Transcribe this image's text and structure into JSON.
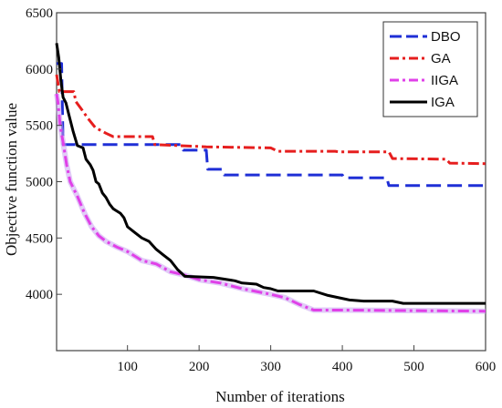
{
  "chart_data": {
    "type": "line",
    "title": "",
    "xlabel": "Number of iterations",
    "ylabel": "Objective function value",
    "xlim": [
      1,
      600
    ],
    "ylim": [
      3500,
      6500
    ],
    "xticks": [
      100,
      200,
      300,
      400,
      500,
      600
    ],
    "yticks": [
      4000,
      4500,
      5000,
      5500,
      6000,
      6500
    ],
    "grid": false,
    "legend_position": "top-right",
    "series": [
      {
        "name": "DBO",
        "color": "#1f2fd6",
        "dash": "long-dash",
        "points": [
          [
            1,
            6050
          ],
          [
            8,
            6050
          ],
          [
            10,
            5330
          ],
          [
            175,
            5330
          ],
          [
            178,
            5280
          ],
          [
            210,
            5280
          ],
          [
            212,
            5110
          ],
          [
            232,
            5110
          ],
          [
            235,
            5060
          ],
          [
            400,
            5060
          ],
          [
            402,
            5035
          ],
          [
            462,
            5035
          ],
          [
            465,
            4965
          ],
          [
            600,
            4965
          ]
        ]
      },
      {
        "name": "GA",
        "color": "#e61e1e",
        "dash": "dash-dot",
        "points": [
          [
            1,
            5950
          ],
          [
            5,
            5800
          ],
          [
            25,
            5800
          ],
          [
            28,
            5710
          ],
          [
            35,
            5650
          ],
          [
            45,
            5560
          ],
          [
            55,
            5480
          ],
          [
            70,
            5430
          ],
          [
            80,
            5400
          ],
          [
            135,
            5400
          ],
          [
            138,
            5330
          ],
          [
            210,
            5310
          ],
          [
            300,
            5300
          ],
          [
            310,
            5270
          ],
          [
            390,
            5270
          ],
          [
            395,
            5265
          ],
          [
            465,
            5265
          ],
          [
            470,
            5205
          ],
          [
            545,
            5200
          ],
          [
            550,
            5165
          ],
          [
            600,
            5160
          ]
        ]
      },
      {
        "name": "IIGA",
        "color": "#e040e8",
        "dash": "dash-dot",
        "points": [
          [
            1,
            5780
          ],
          [
            3,
            5700
          ],
          [
            6,
            5500
          ],
          [
            10,
            5350
          ],
          [
            15,
            5150
          ],
          [
            20,
            5000
          ],
          [
            30,
            4870
          ],
          [
            40,
            4720
          ],
          [
            50,
            4600
          ],
          [
            60,
            4520
          ],
          [
            70,
            4470
          ],
          [
            85,
            4420
          ],
          [
            100,
            4380
          ],
          [
            120,
            4300
          ],
          [
            140,
            4270
          ],
          [
            160,
            4200
          ],
          [
            180,
            4170
          ],
          [
            200,
            4130
          ],
          [
            230,
            4100
          ],
          [
            260,
            4050
          ],
          [
            300,
            4000
          ],
          [
            320,
            3970
          ],
          [
            340,
            3910
          ],
          [
            360,
            3860
          ],
          [
            400,
            3860
          ],
          [
            600,
            3850
          ]
        ]
      },
      {
        "name": "IGA",
        "color": "#000000",
        "dash": "solid",
        "points": [
          [
            1,
            6230
          ],
          [
            4,
            6100
          ],
          [
            7,
            5900
          ],
          [
            10,
            5750
          ],
          [
            14,
            5700
          ],
          [
            18,
            5600
          ],
          [
            24,
            5450
          ],
          [
            30,
            5320
          ],
          [
            38,
            5300
          ],
          [
            42,
            5200
          ],
          [
            48,
            5150
          ],
          [
            52,
            5100
          ],
          [
            56,
            5000
          ],
          [
            60,
            4980
          ],
          [
            65,
            4900
          ],
          [
            70,
            4860
          ],
          [
            75,
            4800
          ],
          [
            80,
            4760
          ],
          [
            90,
            4720
          ],
          [
            95,
            4680
          ],
          [
            100,
            4600
          ],
          [
            110,
            4550
          ],
          [
            120,
            4500
          ],
          [
            130,
            4470
          ],
          [
            140,
            4400
          ],
          [
            150,
            4350
          ],
          [
            160,
            4300
          ],
          [
            170,
            4220
          ],
          [
            180,
            4160
          ],
          [
            200,
            4155
          ],
          [
            220,
            4150
          ],
          [
            250,
            4120
          ],
          [
            260,
            4100
          ],
          [
            280,
            4090
          ],
          [
            290,
            4060
          ],
          [
            300,
            4050
          ],
          [
            310,
            4030
          ],
          [
            360,
            4030
          ],
          [
            380,
            3990
          ],
          [
            410,
            3950
          ],
          [
            430,
            3940
          ],
          [
            470,
            3940
          ],
          [
            485,
            3920
          ],
          [
            600,
            3920
          ]
        ]
      }
    ]
  }
}
